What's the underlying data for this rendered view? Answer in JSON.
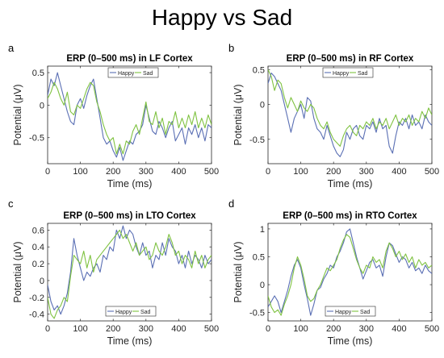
{
  "figure": {
    "title": "Happy vs Sad",
    "panel_letters": [
      "a",
      "b",
      "c",
      "d"
    ]
  },
  "chart_data": [
    {
      "type": "line",
      "title": "ERP (0–500 ms) in LF Cortex",
      "xlabel": "Time (ms)",
      "ylabel": "Potential (μV)",
      "xlim": [
        0,
        500
      ],
      "ylim": [
        -0.9,
        0.6
      ],
      "xticks": [
        0,
        100,
        200,
        300,
        400,
        500
      ],
      "yticks": [
        -0.5,
        0,
        0.5
      ],
      "legend": "top-right",
      "series": [
        {
          "name": "Happy",
          "color": "#5a6fb4",
          "x": [
            0,
            10,
            20,
            30,
            40,
            50,
            60,
            70,
            80,
            90,
            100,
            110,
            120,
            130,
            140,
            150,
            160,
            170,
            180,
            190,
            200,
            210,
            220,
            230,
            240,
            250,
            260,
            270,
            280,
            290,
            300,
            310,
            320,
            330,
            340,
            350,
            360,
            370,
            380,
            390,
            400,
            410,
            420,
            430,
            440,
            450,
            460,
            470,
            480,
            490,
            500
          ],
          "y": [
            0.15,
            0.4,
            0.3,
            0.5,
            0.3,
            0.1,
            -0.1,
            -0.25,
            -0.3,
            0.0,
            0.1,
            -0.05,
            0.15,
            0.3,
            0.4,
            0.1,
            -0.2,
            -0.5,
            -0.6,
            -0.55,
            -0.7,
            -0.8,
            -0.65,
            -0.85,
            -0.7,
            -0.55,
            -0.6,
            -0.45,
            -0.4,
            -0.3,
            0.0,
            -0.2,
            -0.4,
            -0.45,
            -0.25,
            -0.35,
            -0.5,
            -0.35,
            -0.25,
            -0.55,
            -0.45,
            -0.35,
            -0.6,
            -0.35,
            -0.45,
            -0.3,
            -0.5,
            -0.35,
            -0.55,
            -0.3,
            -0.35
          ]
        },
        {
          "name": "Sad",
          "color": "#7fc241",
          "x": [
            0,
            10,
            20,
            30,
            40,
            50,
            60,
            70,
            80,
            90,
            100,
            110,
            120,
            130,
            140,
            150,
            160,
            170,
            180,
            190,
            200,
            210,
            220,
            230,
            240,
            250,
            260,
            270,
            280,
            290,
            300,
            310,
            320,
            330,
            340,
            350,
            360,
            370,
            380,
            390,
            400,
            410,
            420,
            430,
            440,
            450,
            460,
            470,
            480,
            490,
            500
          ],
          "y": [
            0.1,
            0.2,
            0.35,
            0.25,
            0.1,
            0.0,
            0.2,
            -0.1,
            -0.15,
            0.0,
            -0.05,
            0.1,
            0.25,
            0.35,
            0.3,
            0.05,
            -0.1,
            -0.3,
            -0.45,
            -0.55,
            -0.5,
            -0.75,
            -0.6,
            -0.75,
            -0.55,
            -0.6,
            -0.4,
            -0.3,
            -0.45,
            -0.2,
            0.05,
            -0.25,
            -0.3,
            -0.1,
            -0.35,
            -0.2,
            -0.45,
            -0.25,
            -0.3,
            -0.1,
            -0.35,
            -0.2,
            -0.35,
            -0.15,
            -0.3,
            -0.1,
            -0.35,
            -0.2,
            -0.35,
            -0.15,
            -0.3
          ]
        }
      ]
    },
    {
      "type": "line",
      "title": "ERP (0–500 ms) in RF Cortex",
      "xlabel": "Time (ms)",
      "ylabel": "Potential (μV)",
      "xlim": [
        0,
        500
      ],
      "ylim": [
        -0.85,
        0.55
      ],
      "xticks": [
        0,
        100,
        200,
        300,
        400,
        500
      ],
      "yticks": [
        -0.5,
        0,
        0.5
      ],
      "legend": "top-right",
      "series": [
        {
          "name": "Happy",
          "color": "#5a6fb4",
          "x": [
            0,
            10,
            20,
            30,
            40,
            50,
            60,
            70,
            80,
            90,
            100,
            110,
            120,
            130,
            140,
            150,
            160,
            170,
            180,
            190,
            200,
            210,
            220,
            230,
            240,
            250,
            260,
            270,
            280,
            290,
            300,
            310,
            320,
            330,
            340,
            350,
            360,
            370,
            380,
            390,
            400,
            410,
            420,
            430,
            440,
            450,
            460,
            470,
            480,
            490,
            500
          ],
          "y": [
            0.3,
            0.45,
            0.4,
            0.3,
            0.2,
            0.0,
            -0.2,
            -0.4,
            -0.2,
            -0.1,
            0.0,
            -0.2,
            0.1,
            0.05,
            -0.2,
            -0.35,
            -0.4,
            -0.5,
            -0.3,
            -0.45,
            -0.6,
            -0.7,
            -0.75,
            -0.65,
            -0.4,
            -0.5,
            -0.35,
            -0.3,
            -0.45,
            -0.5,
            -0.3,
            -0.35,
            -0.25,
            -0.4,
            -0.2,
            -0.35,
            -0.3,
            -0.6,
            -0.7,
            -0.45,
            -0.25,
            -0.3,
            -0.2,
            -0.35,
            -0.15,
            -0.3,
            -0.25,
            -0.35,
            -0.15,
            -0.25,
            -0.3
          ]
        },
        {
          "name": "Sad",
          "color": "#7fc241",
          "x": [
            0,
            10,
            20,
            30,
            40,
            50,
            60,
            70,
            80,
            90,
            100,
            110,
            120,
            130,
            140,
            150,
            160,
            170,
            180,
            190,
            200,
            210,
            220,
            230,
            240,
            250,
            260,
            270,
            280,
            290,
            300,
            310,
            320,
            330,
            340,
            350,
            360,
            370,
            380,
            390,
            400,
            410,
            420,
            430,
            440,
            450,
            460,
            470,
            480,
            490,
            500
          ],
          "y": [
            0.5,
            0.4,
            0.2,
            0.35,
            0.3,
            0.1,
            -0.05,
            0.1,
            0.0,
            -0.1,
            0.05,
            -0.05,
            -0.1,
            0.0,
            -0.05,
            -0.2,
            -0.3,
            -0.35,
            -0.25,
            -0.4,
            -0.5,
            -0.55,
            -0.6,
            -0.45,
            -0.35,
            -0.3,
            -0.4,
            -0.45,
            -0.3,
            -0.35,
            -0.25,
            -0.3,
            -0.2,
            -0.35,
            -0.25,
            -0.3,
            -0.2,
            -0.35,
            -0.25,
            -0.15,
            -0.3,
            -0.2,
            -0.25,
            -0.15,
            -0.3,
            -0.2,
            -0.25,
            -0.1,
            -0.2,
            -0.05,
            -0.15
          ]
        }
      ]
    },
    {
      "type": "line",
      "title": "ERP (0–500 ms) in LTO Cortex",
      "xlabel": "Time (ms)",
      "ylabel": "Potential (μV)",
      "xlim": [
        0,
        500
      ],
      "ylim": [
        -0.48,
        0.68
      ],
      "xticks": [
        0,
        100,
        200,
        300,
        400,
        500
      ],
      "yticks": [
        -0.4,
        -0.2,
        0,
        0.2,
        0.4,
        0.6
      ],
      "legend": "bottom-right",
      "series": [
        {
          "name": "Happy",
          "color": "#5a6fb4",
          "x": [
            0,
            10,
            20,
            30,
            40,
            50,
            60,
            70,
            80,
            90,
            100,
            110,
            120,
            130,
            140,
            150,
            160,
            170,
            180,
            190,
            200,
            210,
            220,
            230,
            240,
            250,
            260,
            270,
            280,
            290,
            300,
            310,
            320,
            330,
            340,
            350,
            360,
            370,
            380,
            390,
            400,
            410,
            420,
            430,
            440,
            450,
            460,
            470,
            480,
            490,
            500
          ],
          "y": [
            -0.05,
            -0.25,
            -0.35,
            -0.3,
            -0.4,
            -0.3,
            -0.15,
            0.1,
            0.5,
            0.3,
            0.15,
            0.0,
            0.1,
            0.05,
            0.15,
            0.2,
            0.1,
            0.3,
            0.25,
            0.4,
            0.35,
            0.6,
            0.5,
            0.65,
            0.5,
            0.6,
            0.55,
            0.4,
            0.3,
            0.45,
            0.3,
            0.35,
            0.15,
            0.3,
            0.25,
            0.45,
            0.3,
            0.5,
            0.4,
            0.35,
            0.2,
            0.3,
            0.15,
            0.35,
            0.2,
            0.3,
            0.25,
            0.15,
            0.3,
            0.2,
            0.25
          ]
        },
        {
          "name": "Sad",
          "color": "#7fc241",
          "x": [
            0,
            10,
            20,
            30,
            40,
            50,
            60,
            70,
            80,
            90,
            100,
            110,
            120,
            130,
            140,
            150,
            160,
            170,
            180,
            190,
            200,
            210,
            220,
            230,
            240,
            250,
            260,
            270,
            280,
            290,
            300,
            310,
            320,
            330,
            340,
            350,
            360,
            370,
            380,
            390,
            400,
            410,
            420,
            430,
            440,
            450,
            460,
            470,
            480,
            490,
            500
          ],
          "y": [
            -0.2,
            -0.4,
            -0.45,
            -0.35,
            -0.3,
            -0.2,
            -0.25,
            0.05,
            0.3,
            0.25,
            0.2,
            0.35,
            0.15,
            0.3,
            0.1,
            0.25,
            0.3,
            0.35,
            0.4,
            0.45,
            0.5,
            0.55,
            0.6,
            0.5,
            0.55,
            0.45,
            0.35,
            0.45,
            0.3,
            0.35,
            0.4,
            0.25,
            0.3,
            0.45,
            0.35,
            0.3,
            0.4,
            0.55,
            0.45,
            0.3,
            0.35,
            0.2,
            0.3,
            0.25,
            0.15,
            0.35,
            0.2,
            0.3,
            0.15,
            0.25,
            0.3
          ]
        }
      ]
    },
    {
      "type": "line",
      "title": "ERP (0–500 ms) in RTO Cortex",
      "xlabel": "Time (ms)",
      "ylabel": "Potential (μV)",
      "xlim": [
        0,
        500
      ],
      "ylim": [
        -0.65,
        1.1
      ],
      "xticks": [
        0,
        100,
        200,
        300,
        400,
        500
      ],
      "yticks": [
        -0.5,
        0,
        0.5,
        1
      ],
      "legend": "bottom-center",
      "series": [
        {
          "name": "Happy",
          "color": "#5a6fb4",
          "x": [
            0,
            10,
            20,
            30,
            40,
            50,
            60,
            70,
            80,
            90,
            100,
            110,
            120,
            130,
            140,
            150,
            160,
            170,
            180,
            190,
            200,
            210,
            220,
            230,
            240,
            250,
            260,
            270,
            280,
            290,
            300,
            310,
            320,
            330,
            340,
            350,
            360,
            370,
            380,
            390,
            400,
            410,
            420,
            430,
            440,
            450,
            460,
            470,
            480,
            490,
            500
          ],
          "y": [
            -0.4,
            -0.3,
            -0.2,
            -0.3,
            -0.5,
            -0.3,
            -0.1,
            0.15,
            0.35,
            0.45,
            0.3,
            0.0,
            -0.25,
            -0.55,
            -0.35,
            -0.1,
            -0.05,
            0.1,
            0.2,
            0.35,
            0.3,
            0.5,
            0.6,
            0.75,
            0.95,
            1.0,
            0.75,
            0.5,
            0.3,
            0.1,
            0.25,
            0.4,
            0.45,
            0.3,
            0.35,
            0.15,
            0.5,
            0.75,
            0.7,
            0.55,
            0.4,
            0.5,
            0.45,
            0.3,
            0.4,
            0.25,
            0.3,
            0.2,
            0.35,
            0.25,
            0.2
          ]
        },
        {
          "name": "Sad",
          "color": "#7fc241",
          "x": [
            0,
            10,
            20,
            30,
            40,
            50,
            60,
            70,
            80,
            90,
            100,
            110,
            120,
            130,
            140,
            150,
            160,
            170,
            180,
            190,
            200,
            210,
            220,
            230,
            240,
            250,
            260,
            270,
            280,
            290,
            300,
            310,
            320,
            330,
            340,
            350,
            360,
            370,
            380,
            390,
            400,
            410,
            420,
            430,
            440,
            450,
            460,
            470,
            480,
            490,
            500
          ],
          "y": [
            -0.2,
            -0.4,
            -0.5,
            -0.45,
            -0.55,
            -0.35,
            -0.2,
            0.0,
            0.3,
            0.5,
            0.35,
            0.1,
            -0.2,
            -0.3,
            -0.25,
            -0.1,
            0.0,
            0.15,
            0.3,
            0.25,
            0.35,
            0.45,
            0.65,
            0.8,
            0.9,
            0.85,
            0.65,
            0.45,
            0.3,
            0.2,
            0.35,
            0.3,
            0.5,
            0.4,
            0.45,
            0.3,
            0.6,
            0.75,
            0.65,
            0.5,
            0.6,
            0.45,
            0.55,
            0.4,
            0.5,
            0.3,
            0.45,
            0.35,
            0.4,
            0.3,
            0.35
          ]
        }
      ]
    }
  ]
}
